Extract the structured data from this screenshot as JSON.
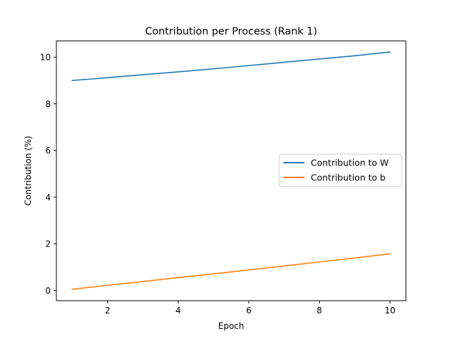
{
  "chart_data": {
    "type": "line",
    "title": "Contribution per Process (Rank 1)",
    "xlabel": "Epoch",
    "ylabel": "Contribution (%)",
    "xlim": [
      0.55,
      10.45
    ],
    "ylim": [
      -0.44,
      10.7
    ],
    "xticks": [
      2,
      4,
      6,
      8,
      10
    ],
    "yticks": [
      0,
      2,
      4,
      6,
      8,
      10
    ],
    "grid": false,
    "legend_position": "center-right",
    "x": [
      1,
      2,
      3,
      4,
      5,
      6,
      7,
      8,
      9,
      10
    ],
    "series": [
      {
        "name": "Contribution to W",
        "color": "#1f77b4",
        "values": [
          9.0,
          9.12,
          9.25,
          9.37,
          9.5,
          9.64,
          9.78,
          9.92,
          10.06,
          10.22
        ]
      },
      {
        "name": "Contribution to b",
        "color": "#ff7f0e",
        "values": [
          0.05,
          0.22,
          0.38,
          0.55,
          0.71,
          0.88,
          1.05,
          1.22,
          1.39,
          1.57
        ]
      }
    ]
  }
}
